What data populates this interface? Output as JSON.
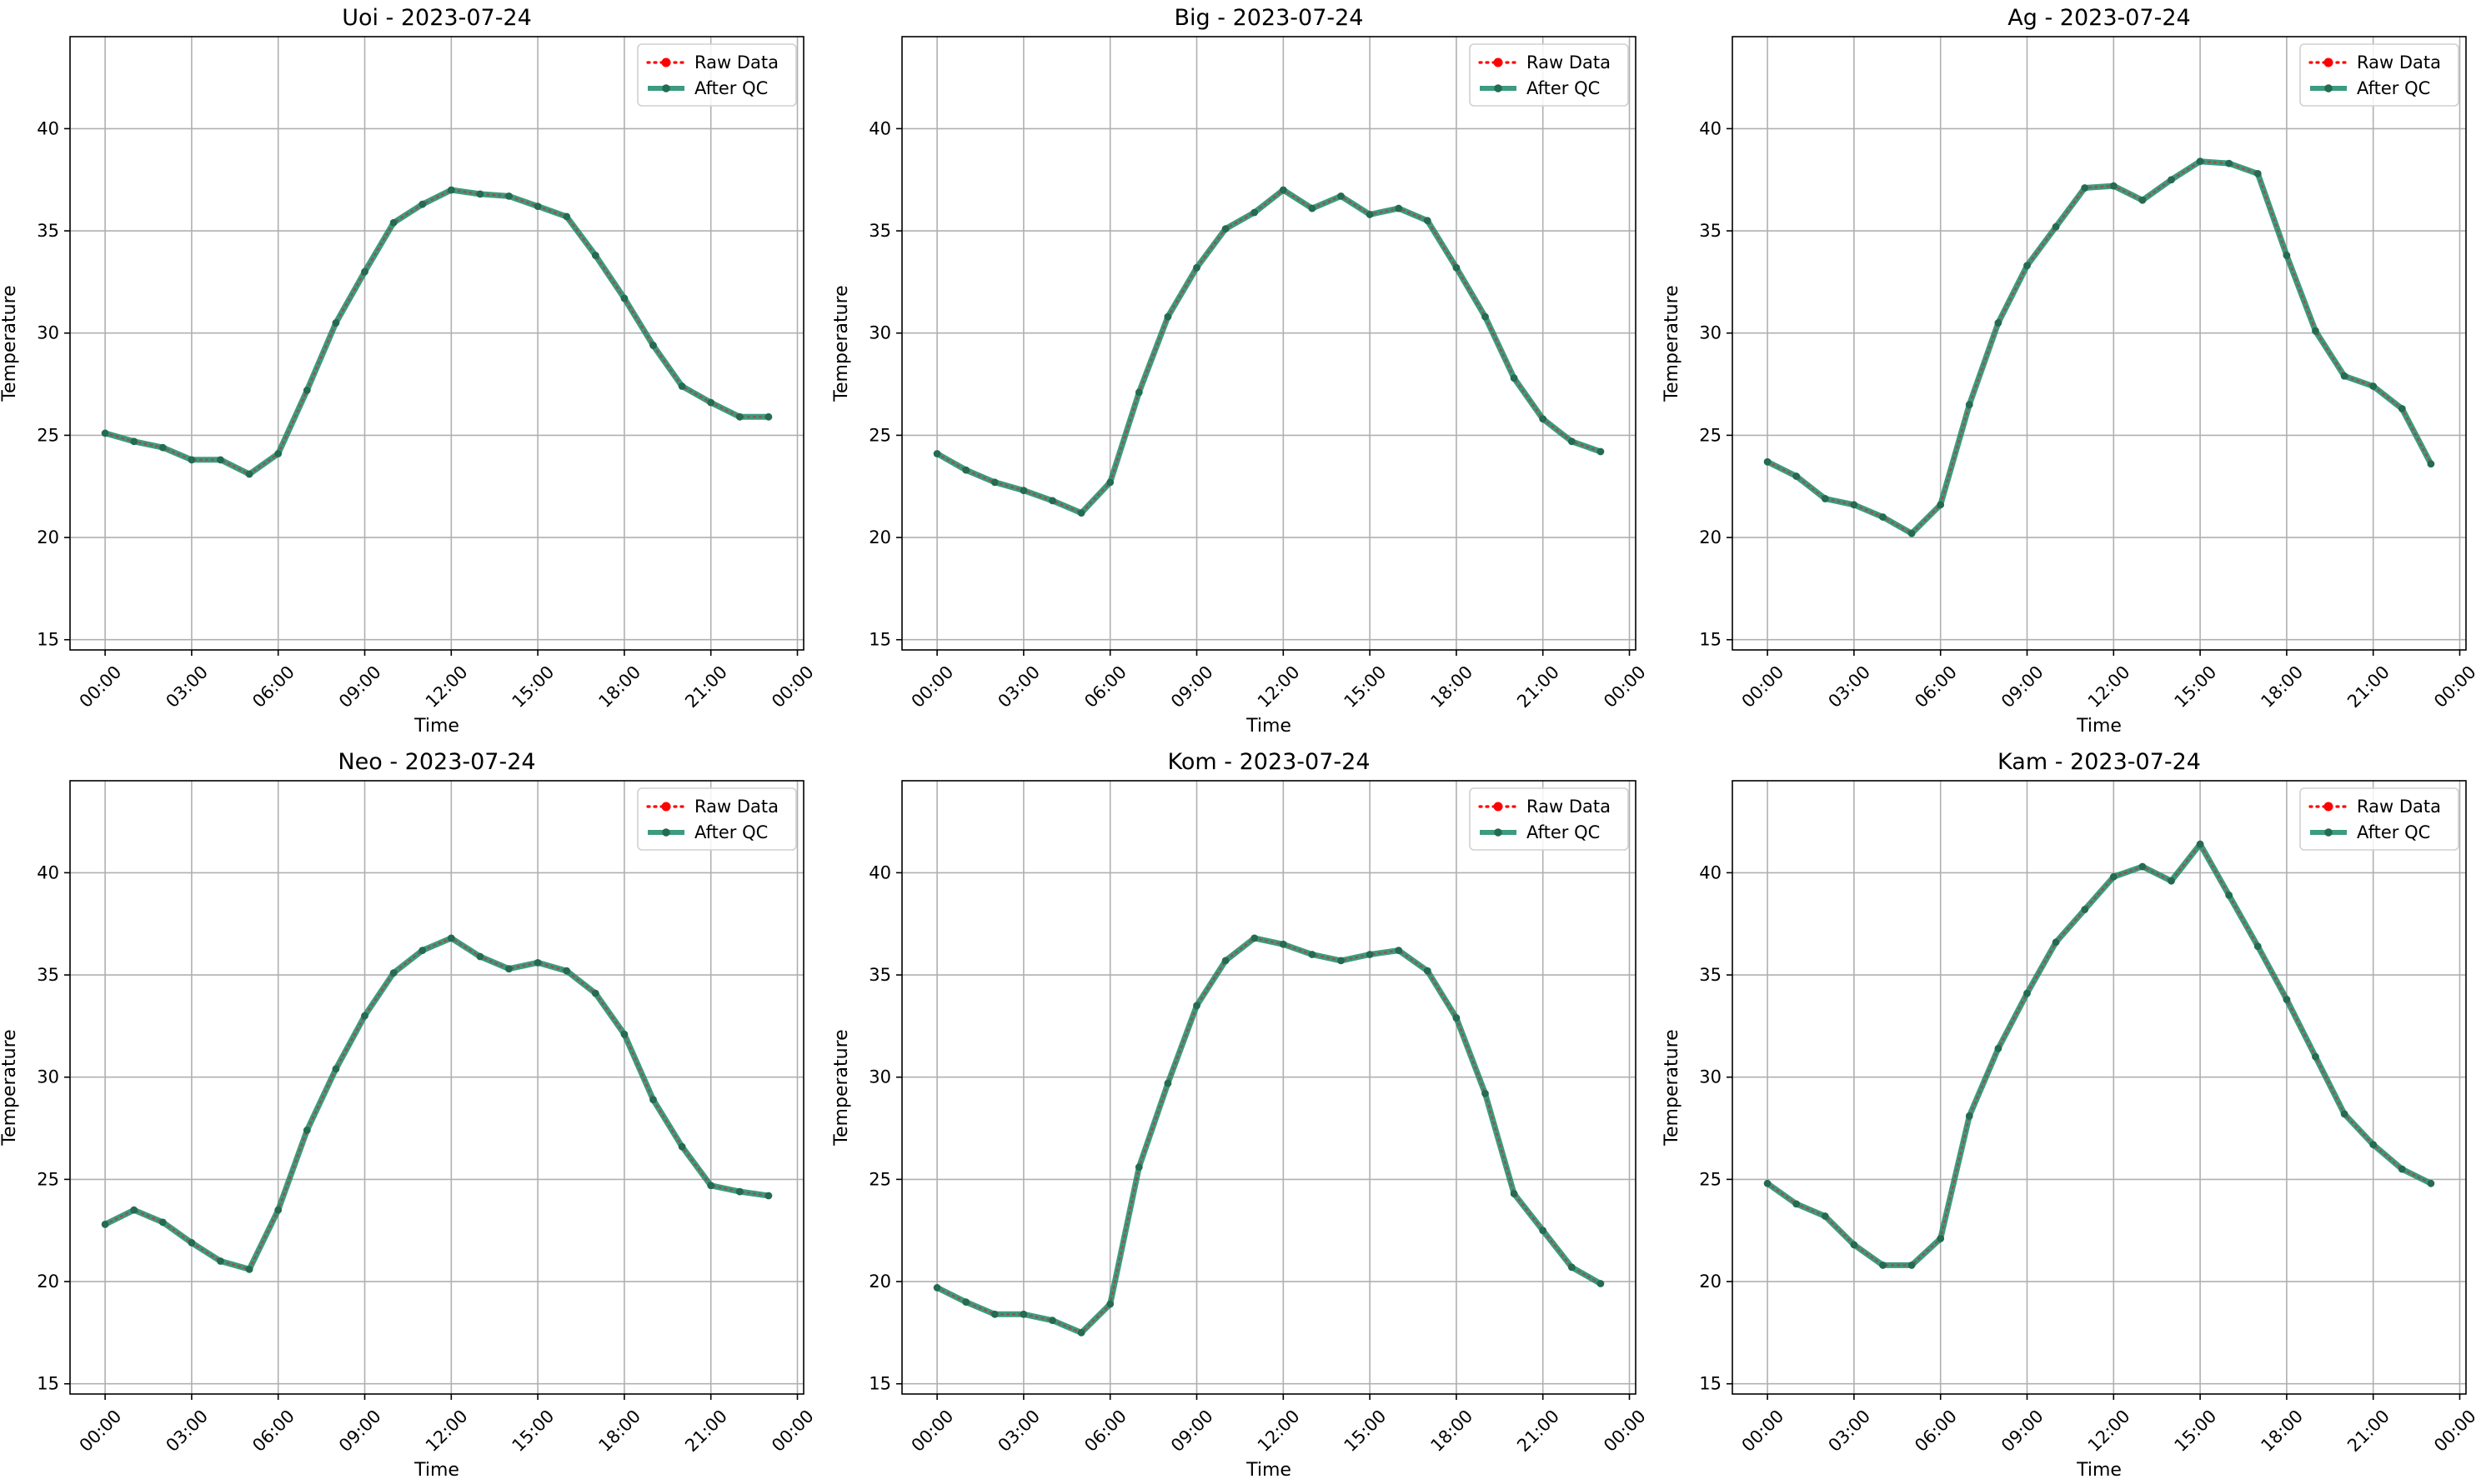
{
  "figure": {
    "colors": {
      "raw": "#ff0000",
      "qc": "#1a8a6a",
      "qc_marker": "#246b52",
      "grid": "#b0b0b0",
      "axis": "#000000",
      "legend_border": "#d0d0d0"
    }
  },
  "chart_data": [
    {
      "type": "line",
      "title": "Uoi - 2023-07-24",
      "xlabel": "Time",
      "ylabel": "Temperature",
      "ylim": [
        14.5,
        44.5
      ],
      "yticks": [
        15,
        20,
        25,
        30,
        35,
        40
      ],
      "xlim": [
        "2023-07-23T22:47",
        "2023-07-25T00:13"
      ],
      "xticks": [
        "2023-07-24T00:00",
        "2023-07-24T03:00",
        "2023-07-24T06:00",
        "2023-07-24T09:00",
        "2023-07-24T12:00",
        "2023-07-24T15:00",
        "2023-07-24T18:00",
        "2023-07-24T21:00",
        "2023-07-25T00:00"
      ],
      "xticklabels": [
        "00:00",
        "03:00",
        "06:00",
        "09:00",
        "12:00",
        "15:00",
        "18:00",
        "21:00",
        "00:00"
      ],
      "legend": "top-right",
      "grid": true,
      "x": [
        "00:00",
        "01:00",
        "02:00",
        "03:00",
        "04:00",
        "05:00",
        "06:00",
        "07:00",
        "08:00",
        "09:00",
        "10:00",
        "11:00",
        "12:00",
        "13:00",
        "14:00",
        "15:00",
        "16:00",
        "17:00",
        "18:00",
        "19:00",
        "20:00",
        "21:00",
        "22:00",
        "23:00"
      ],
      "series": [
        {
          "name": "Raw Data",
          "values": [
            25.1,
            24.7,
            24.4,
            23.8,
            23.8,
            23.1,
            24.1,
            27.2,
            30.5,
            33.0,
            35.4,
            36.3,
            37.0,
            36.8,
            36.7,
            36.2,
            35.7,
            33.8,
            31.7,
            29.4,
            27.4,
            26.6,
            25.9,
            25.9
          ]
        },
        {
          "name": "After QC",
          "values": [
            25.1,
            24.7,
            24.4,
            23.8,
            23.8,
            23.1,
            24.1,
            27.2,
            30.5,
            33.0,
            35.4,
            36.3,
            37.0,
            36.8,
            36.7,
            36.2,
            35.7,
            33.8,
            31.7,
            29.4,
            27.4,
            26.6,
            25.9,
            25.9
          ]
        }
      ]
    },
    {
      "type": "line",
      "title": "Big - 2023-07-24",
      "xlabel": "Time",
      "ylabel": "Temperature",
      "ylim": [
        14.5,
        44.5
      ],
      "yticks": [
        15,
        20,
        25,
        30,
        35,
        40
      ],
      "xlim": [
        "2023-07-23T22:47",
        "2023-07-25T00:13"
      ],
      "xticks": [
        "2023-07-24T00:00",
        "2023-07-24T03:00",
        "2023-07-24T06:00",
        "2023-07-24T09:00",
        "2023-07-24T12:00",
        "2023-07-24T15:00",
        "2023-07-24T18:00",
        "2023-07-24T21:00",
        "2023-07-25T00:00"
      ],
      "xticklabels": [
        "00:00",
        "03:00",
        "06:00",
        "09:00",
        "12:00",
        "15:00",
        "18:00",
        "21:00",
        "00:00"
      ],
      "legend": "top-right",
      "grid": true,
      "x": [
        "00:00",
        "01:00",
        "02:00",
        "03:00",
        "04:00",
        "05:00",
        "06:00",
        "07:00",
        "08:00",
        "09:00",
        "10:00",
        "11:00",
        "12:00",
        "13:00",
        "14:00",
        "15:00",
        "16:00",
        "17:00",
        "18:00",
        "19:00",
        "20:00",
        "21:00",
        "22:00",
        "23:00"
      ],
      "series": [
        {
          "name": "Raw Data",
          "values": [
            24.1,
            23.3,
            22.7,
            22.3,
            21.8,
            21.2,
            22.7,
            27.1,
            30.8,
            33.2,
            35.1,
            35.9,
            37.0,
            36.1,
            36.7,
            35.8,
            36.1,
            35.5,
            33.2,
            30.8,
            27.8,
            25.8,
            24.7,
            24.2
          ]
        },
        {
          "name": "After QC",
          "values": [
            24.1,
            23.3,
            22.7,
            22.3,
            21.8,
            21.2,
            22.7,
            27.1,
            30.8,
            33.2,
            35.1,
            35.9,
            37.0,
            36.1,
            36.7,
            35.8,
            36.1,
            35.5,
            33.2,
            30.8,
            27.8,
            25.8,
            24.7,
            24.2
          ]
        }
      ]
    },
    {
      "type": "line",
      "title": "Ag - 2023-07-24",
      "xlabel": "Time",
      "ylabel": "Temperature",
      "ylim": [
        14.5,
        44.5
      ],
      "yticks": [
        15,
        20,
        25,
        30,
        35,
        40
      ],
      "xlim": [
        "2023-07-23T22:47",
        "2023-07-25T00:13"
      ],
      "xticks": [
        "2023-07-24T00:00",
        "2023-07-24T03:00",
        "2023-07-24T06:00",
        "2023-07-24T09:00",
        "2023-07-24T12:00",
        "2023-07-24T15:00",
        "2023-07-24T18:00",
        "2023-07-24T21:00",
        "2023-07-25T00:00"
      ],
      "xticklabels": [
        "00:00",
        "03:00",
        "06:00",
        "09:00",
        "12:00",
        "15:00",
        "18:00",
        "21:00",
        "00:00"
      ],
      "legend": "top-right",
      "grid": true,
      "x": [
        "00:00",
        "01:00",
        "02:00",
        "03:00",
        "04:00",
        "05:00",
        "06:00",
        "07:00",
        "08:00",
        "09:00",
        "10:00",
        "11:00",
        "12:00",
        "13:00",
        "14:00",
        "15:00",
        "16:00",
        "17:00",
        "18:00",
        "19:00",
        "20:00",
        "21:00",
        "22:00",
        "23:00"
      ],
      "series": [
        {
          "name": "Raw Data",
          "values": [
            23.7,
            23.0,
            21.9,
            21.6,
            21.0,
            20.2,
            21.6,
            26.5,
            30.5,
            33.3,
            35.2,
            37.1,
            37.2,
            36.5,
            37.5,
            38.4,
            38.3,
            37.8,
            33.8,
            30.1,
            27.9,
            27.4,
            26.3,
            23.6
          ]
        },
        {
          "name": "After QC",
          "values": [
            23.7,
            23.0,
            21.9,
            21.6,
            21.0,
            20.2,
            21.6,
            26.5,
            30.5,
            33.3,
            35.2,
            37.1,
            37.2,
            36.5,
            37.5,
            38.4,
            38.3,
            37.8,
            33.8,
            30.1,
            27.9,
            27.4,
            26.3,
            23.6
          ]
        }
      ]
    },
    {
      "type": "line",
      "title": "Neo - 2023-07-24",
      "xlabel": "Time",
      "ylabel": "Temperature",
      "ylim": [
        14.5,
        44.5
      ],
      "yticks": [
        15,
        20,
        25,
        30,
        35,
        40
      ],
      "xlim": [
        "2023-07-23T22:47",
        "2023-07-25T00:13"
      ],
      "xticks": [
        "2023-07-24T00:00",
        "2023-07-24T03:00",
        "2023-07-24T06:00",
        "2023-07-24T09:00",
        "2023-07-24T12:00",
        "2023-07-24T15:00",
        "2023-07-24T18:00",
        "2023-07-24T21:00",
        "2023-07-25T00:00"
      ],
      "xticklabels": [
        "00:00",
        "03:00",
        "06:00",
        "09:00",
        "12:00",
        "15:00",
        "18:00",
        "21:00",
        "00:00"
      ],
      "legend": "top-right",
      "grid": true,
      "x": [
        "00:00",
        "01:00",
        "02:00",
        "03:00",
        "04:00",
        "05:00",
        "06:00",
        "07:00",
        "08:00",
        "09:00",
        "10:00",
        "11:00",
        "12:00",
        "13:00",
        "14:00",
        "15:00",
        "16:00",
        "17:00",
        "18:00",
        "19:00",
        "20:00",
        "21:00",
        "22:00",
        "23:00"
      ],
      "series": [
        {
          "name": "Raw Data",
          "values": [
            22.8,
            23.5,
            22.9,
            21.9,
            21.0,
            20.6,
            23.5,
            27.4,
            30.4,
            33.0,
            35.1,
            36.2,
            36.8,
            35.9,
            35.3,
            35.6,
            35.2,
            34.1,
            32.1,
            28.9,
            26.6,
            24.7,
            24.4,
            24.2
          ]
        },
        {
          "name": "After QC",
          "values": [
            22.8,
            23.5,
            22.9,
            21.9,
            21.0,
            20.6,
            23.5,
            27.4,
            30.4,
            33.0,
            35.1,
            36.2,
            36.8,
            35.9,
            35.3,
            35.6,
            35.2,
            34.1,
            32.1,
            28.9,
            26.6,
            24.7,
            24.4,
            24.2
          ]
        }
      ]
    },
    {
      "type": "line",
      "title": "Kom - 2023-07-24",
      "xlabel": "Time",
      "ylabel": "Temperature",
      "ylim": [
        14.5,
        44.5
      ],
      "yticks": [
        15,
        20,
        25,
        30,
        35,
        40
      ],
      "xlim": [
        "2023-07-23T22:47",
        "2023-07-25T00:13"
      ],
      "xticks": [
        "2023-07-24T00:00",
        "2023-07-24T03:00",
        "2023-07-24T06:00",
        "2023-07-24T09:00",
        "2023-07-24T12:00",
        "2023-07-24T15:00",
        "2023-07-24T18:00",
        "2023-07-24T21:00",
        "2023-07-25T00:00"
      ],
      "xticklabels": [
        "00:00",
        "03:00",
        "06:00",
        "09:00",
        "12:00",
        "15:00",
        "18:00",
        "21:00",
        "00:00"
      ],
      "legend": "top-right",
      "grid": true,
      "x": [
        "00:00",
        "01:00",
        "02:00",
        "03:00",
        "04:00",
        "05:00",
        "06:00",
        "07:00",
        "08:00",
        "09:00",
        "10:00",
        "11:00",
        "12:00",
        "13:00",
        "14:00",
        "15:00",
        "16:00",
        "17:00",
        "18:00",
        "19:00",
        "20:00",
        "21:00",
        "22:00",
        "23:00"
      ],
      "series": [
        {
          "name": "Raw Data",
          "values": [
            19.7,
            19.0,
            18.4,
            18.4,
            18.1,
            17.5,
            18.9,
            25.6,
            29.7,
            33.5,
            35.7,
            36.8,
            36.5,
            36.0,
            35.7,
            36.0,
            36.2,
            35.2,
            32.9,
            29.2,
            24.3,
            22.5,
            20.7,
            19.9
          ]
        },
        {
          "name": "After QC",
          "values": [
            19.7,
            19.0,
            18.4,
            18.4,
            18.1,
            17.5,
            18.9,
            25.6,
            29.7,
            33.5,
            35.7,
            36.8,
            36.5,
            36.0,
            35.7,
            36.0,
            36.2,
            35.2,
            32.9,
            29.2,
            24.3,
            22.5,
            20.7,
            19.9
          ]
        }
      ]
    },
    {
      "type": "line",
      "title": "Kam - 2023-07-24",
      "xlabel": "Time",
      "ylabel": "Temperature",
      "ylim": [
        14.5,
        44.5
      ],
      "yticks": [
        15,
        20,
        25,
        30,
        35,
        40
      ],
      "xlim": [
        "2023-07-23T22:47",
        "2023-07-25T00:13"
      ],
      "xticks": [
        "2023-07-24T00:00",
        "2023-07-24T03:00",
        "2023-07-24T06:00",
        "2023-07-24T09:00",
        "2023-07-24T12:00",
        "2023-07-24T15:00",
        "2023-07-24T18:00",
        "2023-07-24T21:00",
        "2023-07-25T00:00"
      ],
      "xticklabels": [
        "00:00",
        "03:00",
        "06:00",
        "09:00",
        "12:00",
        "15:00",
        "18:00",
        "21:00",
        "00:00"
      ],
      "legend": "top-right",
      "grid": true,
      "x": [
        "00:00",
        "01:00",
        "02:00",
        "03:00",
        "04:00",
        "05:00",
        "06:00",
        "07:00",
        "08:00",
        "09:00",
        "10:00",
        "11:00",
        "12:00",
        "13:00",
        "14:00",
        "15:00",
        "16:00",
        "17:00",
        "18:00",
        "19:00",
        "20:00",
        "21:00",
        "22:00",
        "23:00"
      ],
      "series": [
        {
          "name": "Raw Data",
          "values": [
            24.8,
            23.8,
            23.2,
            21.8,
            20.8,
            20.8,
            22.1,
            28.1,
            31.4,
            34.1,
            36.6,
            38.2,
            39.8,
            40.3,
            39.6,
            41.4,
            38.9,
            36.4,
            33.8,
            31.0,
            28.2,
            26.7,
            25.5,
            24.8
          ]
        },
        {
          "name": "After QC",
          "values": [
            24.8,
            23.8,
            23.2,
            21.8,
            20.8,
            20.8,
            22.1,
            28.1,
            31.4,
            34.1,
            36.6,
            38.2,
            39.8,
            40.3,
            39.6,
            41.4,
            38.9,
            36.4,
            33.8,
            31.0,
            28.2,
            26.7,
            25.5,
            24.8
          ]
        }
      ]
    }
  ]
}
